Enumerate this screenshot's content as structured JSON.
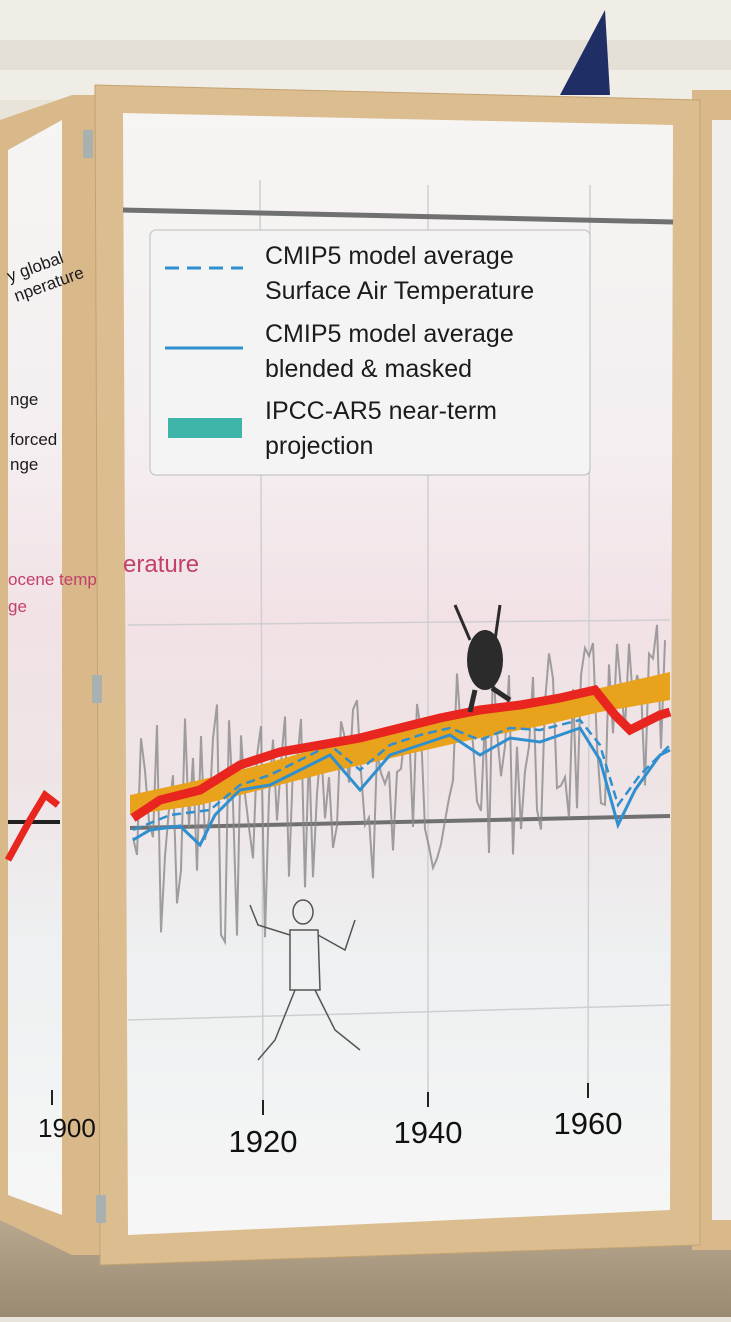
{
  "legend": [
    {
      "lines": [
        "CMIP5 model average",
        "Surface Air Temperature"
      ]
    },
    {
      "lines": [
        "CMIP5 model average",
        "blended & masked"
      ]
    },
    {
      "lines": [
        "IPCC-AR5 near-term",
        "projection"
      ]
    }
  ],
  "center_label": "erature",
  "left_panel": {
    "texts": [
      "y global",
      "nperature",
      "nge",
      "forced",
      "nge",
      "ocene temp",
      "ge"
    ],
    "year": "1900"
  },
  "years": [
    "1920",
    "1940",
    "1960"
  ]
}
